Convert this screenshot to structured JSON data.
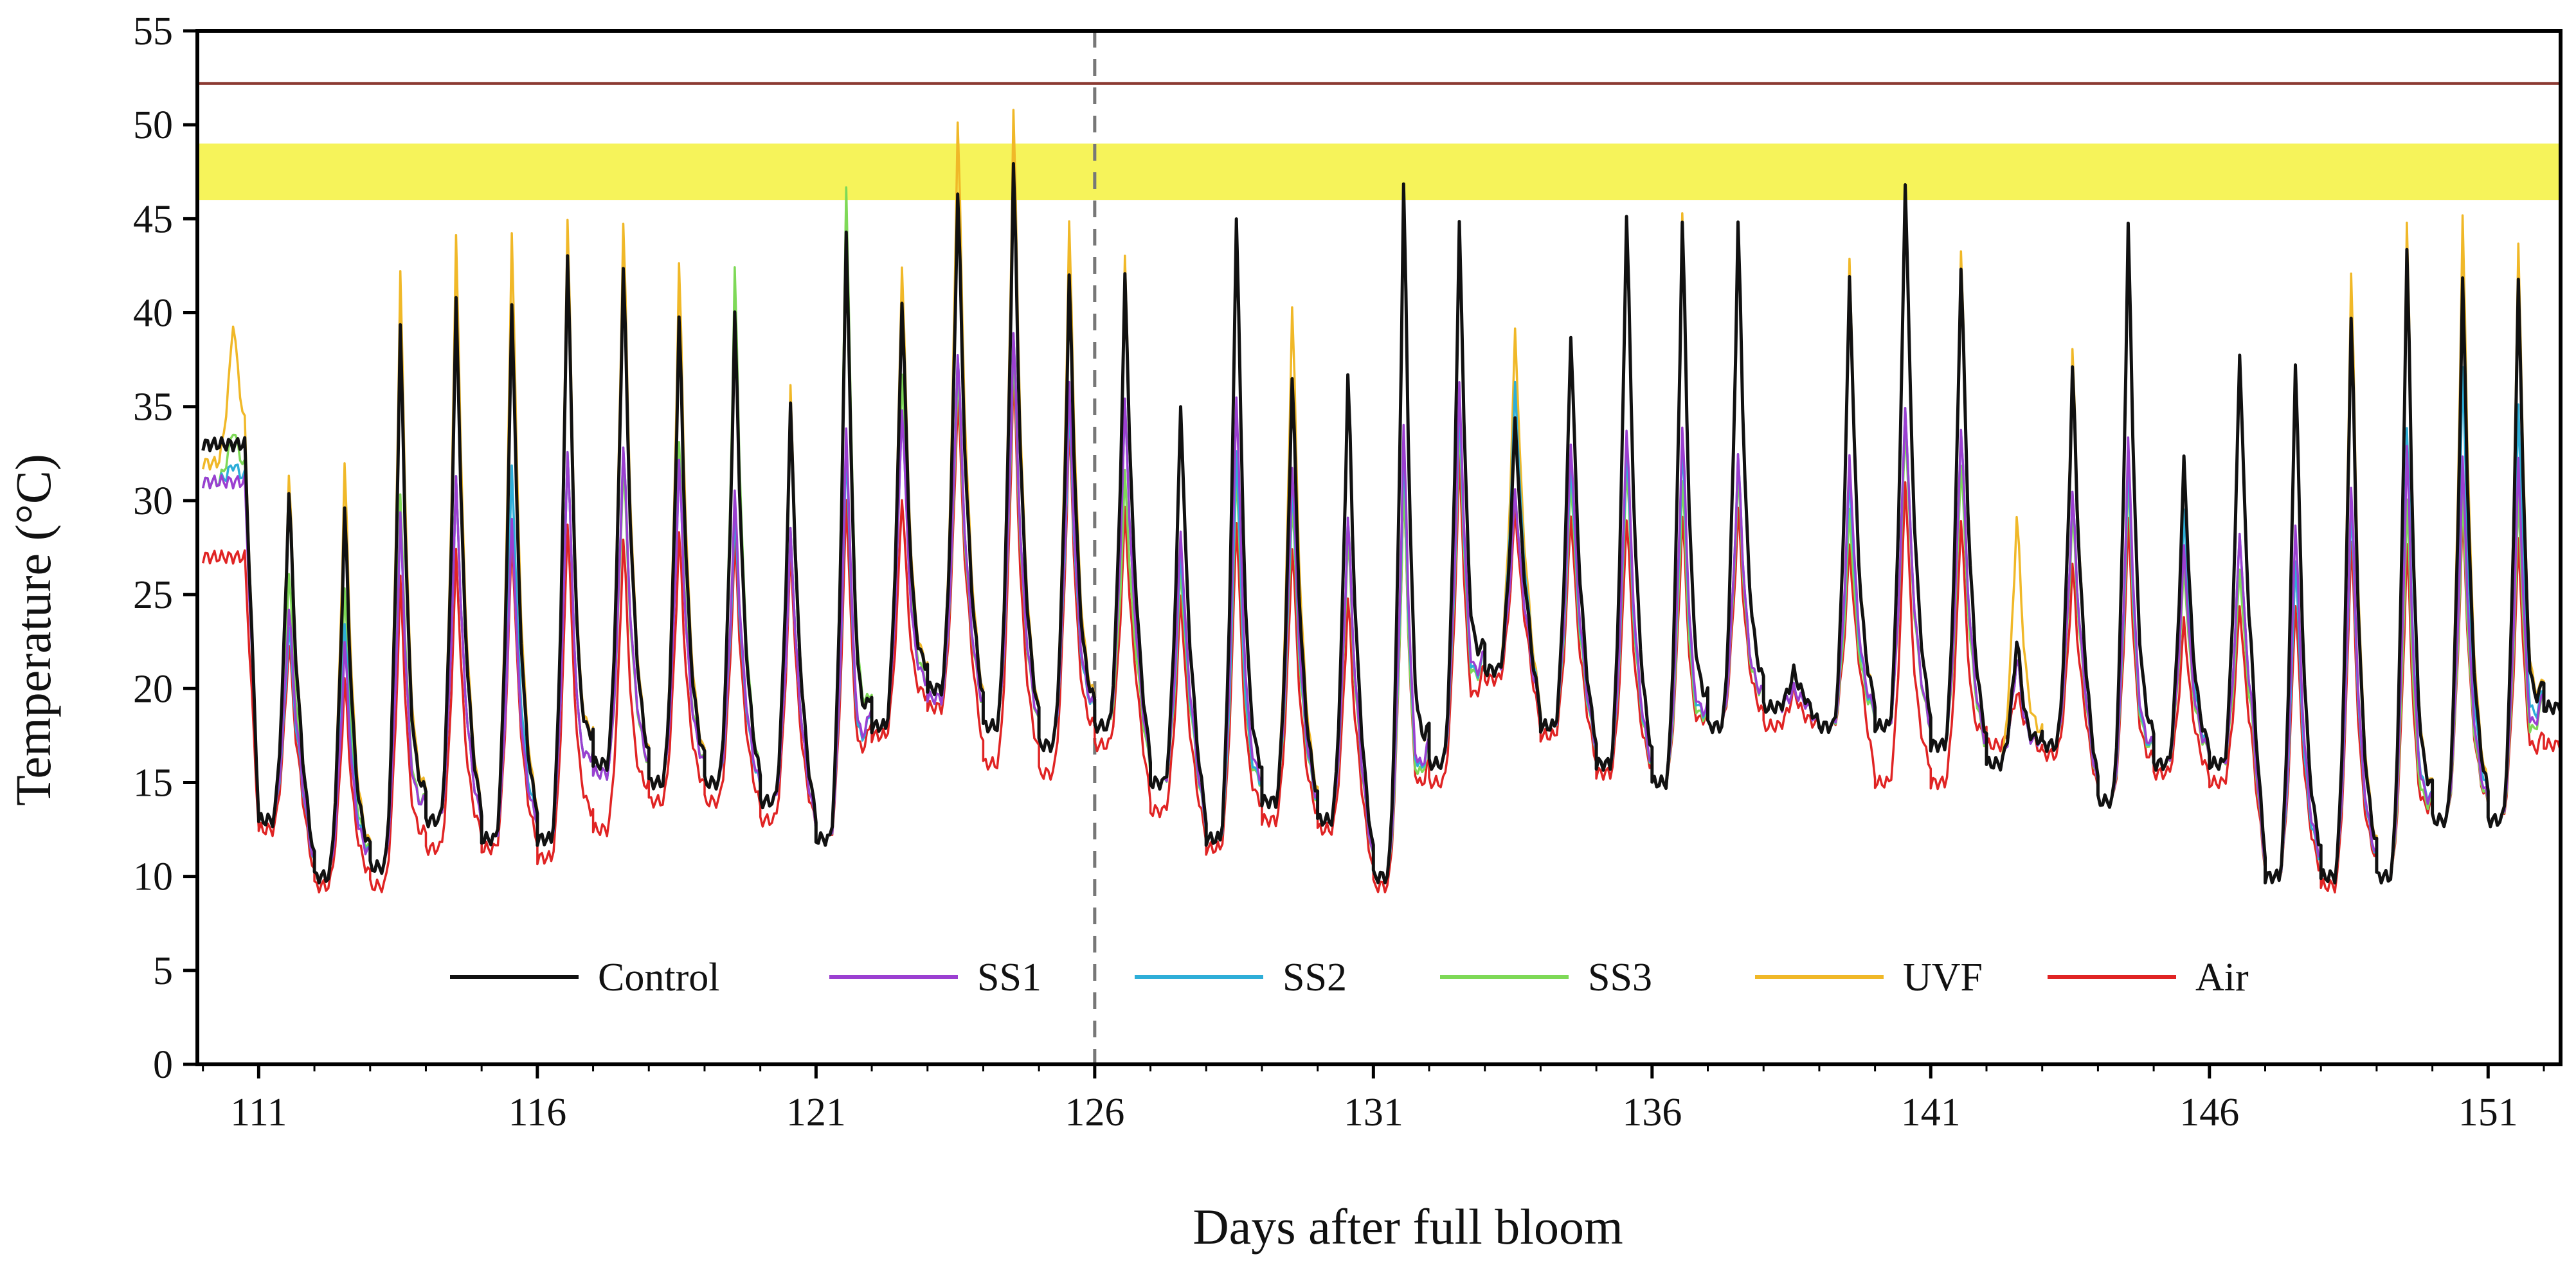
{
  "chart_data": {
    "type": "line",
    "title": "",
    "xlabel": "Days after full bloom",
    "ylabel": "Temperature (°C)",
    "xlim": [
      109.9,
      152.3
    ],
    "ylim": [
      0,
      55
    ],
    "xticks": [
      111,
      116,
      121,
      126,
      131,
      136,
      141,
      146,
      151
    ],
    "xtick_labels": [
      "111",
      "116",
      "121",
      "126",
      "131",
      "136",
      "141",
      "146",
      "151"
    ],
    "yticks": [
      0,
      5,
      10,
      15,
      20,
      25,
      30,
      35,
      40,
      45,
      50,
      55
    ],
    "ytick_labels": [
      "0",
      "5",
      "10",
      "15",
      "20",
      "25",
      "30",
      "35",
      "40",
      "45",
      "50",
      "55"
    ],
    "grid": false,
    "legend_position": "bottom-center",
    "reference_line": {
      "y": 52.2,
      "color": "#8b3a32"
    },
    "highlight_band": {
      "y_from": 46,
      "y_to": 49,
      "color": "#f6f35a"
    },
    "vertical_marker": {
      "x": 126,
      "style": "dashed",
      "color": "#777777"
    },
    "days": [
      110,
      111,
      112,
      113,
      114,
      115,
      116,
      117,
      118,
      119,
      120,
      121,
      122,
      123,
      124,
      125,
      126,
      127,
      128,
      129,
      130,
      131,
      132,
      133,
      134,
      135,
      136,
      137,
      138,
      139,
      140,
      141,
      142,
      143,
      144,
      145,
      146,
      147,
      148,
      149,
      150,
      151,
      152
    ],
    "series": [
      {
        "name": "Control",
        "color": "#111111",
        "daily_min": [
          33,
          13,
          10,
          10.5,
          13,
          12,
          12,
          16,
          15,
          15,
          14,
          12,
          18,
          20,
          18,
          17,
          18,
          15,
          12,
          14,
          13,
          10,
          16,
          21,
          18,
          16,
          15,
          18,
          19,
          18,
          18,
          17,
          16,
          17,
          14,
          16,
          16,
          10,
          10,
          10,
          13,
          13,
          19
        ],
        "daily_max": [
          33,
          31.5,
          30.5,
          40.5,
          42,
          42,
          45,
          44,
          41,
          41,
          36,
          46,
          42,
          48,
          49.5,
          43,
          43,
          36,
          47,
          38,
          38,
          48.5,
          46,
          35,
          40,
          47,
          46.5,
          46,
          21,
          43,
          48.5,
          44,
          23,
          38,
          46,
          33,
          39,
          39,
          41.5,
          45,
          43,
          43,
          24
        ]
      },
      {
        "name": "SS1",
        "color": "#9b3fd1",
        "daily_min": [
          31,
          13,
          10,
          10.5,
          13,
          12,
          12,
          15.5,
          15,
          15,
          14,
          12,
          18,
          19.5,
          18,
          17,
          18,
          15,
          12,
          14,
          13,
          10,
          16,
          21,
          18,
          16,
          15,
          18,
          19,
          18,
          18,
          17,
          16,
          17,
          14,
          16,
          16,
          10,
          10,
          10,
          13,
          13,
          19
        ],
        "daily_max": [
          31,
          25,
          23,
          30,
          32,
          30,
          34,
          34,
          33,
          31,
          29,
          35,
          36,
          39,
          40,
          37,
          36,
          29,
          37,
          33,
          30,
          35,
          37,
          31,
          34,
          35,
          35,
          33,
          20,
          33,
          36,
          35,
          22,
          31,
          34,
          28,
          29,
          30,
          32,
          34,
          33,
          33,
          22
        ]
      },
      {
        "name": "SS2",
        "color": "#2eaed8",
        "daily_min": [
          31,
          13,
          10,
          10.5,
          13,
          12,
          12,
          15.5,
          15,
          15,
          14,
          12,
          18,
          19.5,
          18,
          17,
          18,
          15,
          12,
          14,
          13,
          10,
          16,
          21,
          18,
          16,
          15,
          18,
          19,
          18,
          18,
          17,
          16,
          17,
          14,
          16,
          16,
          10,
          10,
          10,
          13,
          13,
          19
        ],
        "daily_max": [
          32,
          24,
          24,
          30,
          32,
          33,
          34,
          34,
          33,
          30,
          29,
          34,
          36,
          39,
          40,
          36,
          36,
          28,
          34,
          32,
          30,
          34,
          36,
          37,
          33,
          34,
          34,
          33,
          20,
          32,
          36,
          35,
          22,
          31,
          33,
          30,
          29,
          28,
          31,
          35,
          38,
          36,
          22
        ]
      },
      {
        "name": "SS3",
        "color": "#7ed957",
        "daily_min": [
          31,
          13,
          10,
          10.5,
          13,
          12,
          12,
          15.5,
          15,
          15,
          14,
          12,
          18,
          19.5,
          18,
          17,
          18,
          15,
          12,
          14,
          13,
          10,
          16,
          21,
          18,
          16,
          15,
          18,
          19,
          18,
          18,
          17,
          16,
          17,
          14,
          16,
          16,
          10,
          10,
          10,
          13,
          13,
          19
        ],
        "daily_max": [
          34,
          27,
          26,
          31,
          32,
          30,
          34,
          33,
          34,
          43.5,
          29,
          48.5,
          38,
          38,
          39,
          36,
          32,
          27,
          33,
          31,
          29,
          32,
          35,
          31,
          32,
          33,
          32,
          32,
          21,
          30,
          35,
          33,
          22,
          30,
          32,
          27,
          27,
          28,
          31,
          31,
          31,
          31,
          22
        ]
      },
      {
        "name": "UVF",
        "color": "#f0b828",
        "daily_min": [
          32,
          13,
          10,
          10.5,
          13,
          12,
          12,
          16,
          15,
          15,
          14,
          12,
          18,
          20,
          18,
          17,
          18,
          15,
          12,
          14,
          13,
          10,
          16,
          21,
          18,
          16,
          15,
          18,
          19,
          18,
          18,
          17,
          16,
          17,
          14,
          16,
          16,
          10,
          10,
          10,
          13,
          13,
          19
        ],
        "daily_max": [
          40,
          32.5,
          33,
          43.5,
          45.5,
          46,
          47,
          46.5,
          44,
          42,
          37,
          48,
          44,
          52,
          52.5,
          46,
          44,
          36,
          47,
          42,
          38,
          48,
          46,
          40,
          40,
          47,
          47,
          46,
          21,
          44,
          48,
          45,
          30,
          39,
          46,
          33,
          39,
          39,
          44,
          46.5,
          46.5,
          45,
          25
        ]
      },
      {
        "name": "Air",
        "color": "#e02424",
        "daily_min": [
          27,
          12.5,
          9.5,
          9.5,
          11.5,
          11.5,
          11,
          12.5,
          14,
          14,
          13,
          12,
          17.5,
          19,
          16,
          15.5,
          17,
          13.5,
          11.5,
          13,
          12.5,
          9.5,
          15,
          20.5,
          17.5,
          15.5,
          15,
          18,
          18,
          18,
          15,
          15,
          17,
          16.5,
          14,
          15.5,
          15,
          10,
          9.5,
          10,
          13,
          13,
          17
        ],
        "daily_max": [
          27,
          23,
          21,
          26.5,
          28,
          29,
          30,
          29,
          29,
          28.5,
          28,
          31,
          31,
          36.5,
          38,
          35,
          30,
          25.5,
          30,
          28.5,
          25.5,
          32,
          33,
          30,
          30,
          30,
          30,
          30,
          20,
          28,
          32,
          30,
          20,
          27,
          29.5,
          24,
          25,
          25.5,
          29,
          28.5,
          30,
          28.5,
          20
        ]
      }
    ]
  },
  "legend": {
    "items": [
      {
        "label": "Control",
        "color": "#111111"
      },
      {
        "label": "SS1",
        "color": "#9b3fd1"
      },
      {
        "label": "SS2",
        "color": "#2eaed8"
      },
      {
        "label": "SS3",
        "color": "#7ed957"
      },
      {
        "label": "UVF",
        "color": "#f0b828"
      },
      {
        "label": "Air",
        "color": "#e02424"
      }
    ]
  }
}
